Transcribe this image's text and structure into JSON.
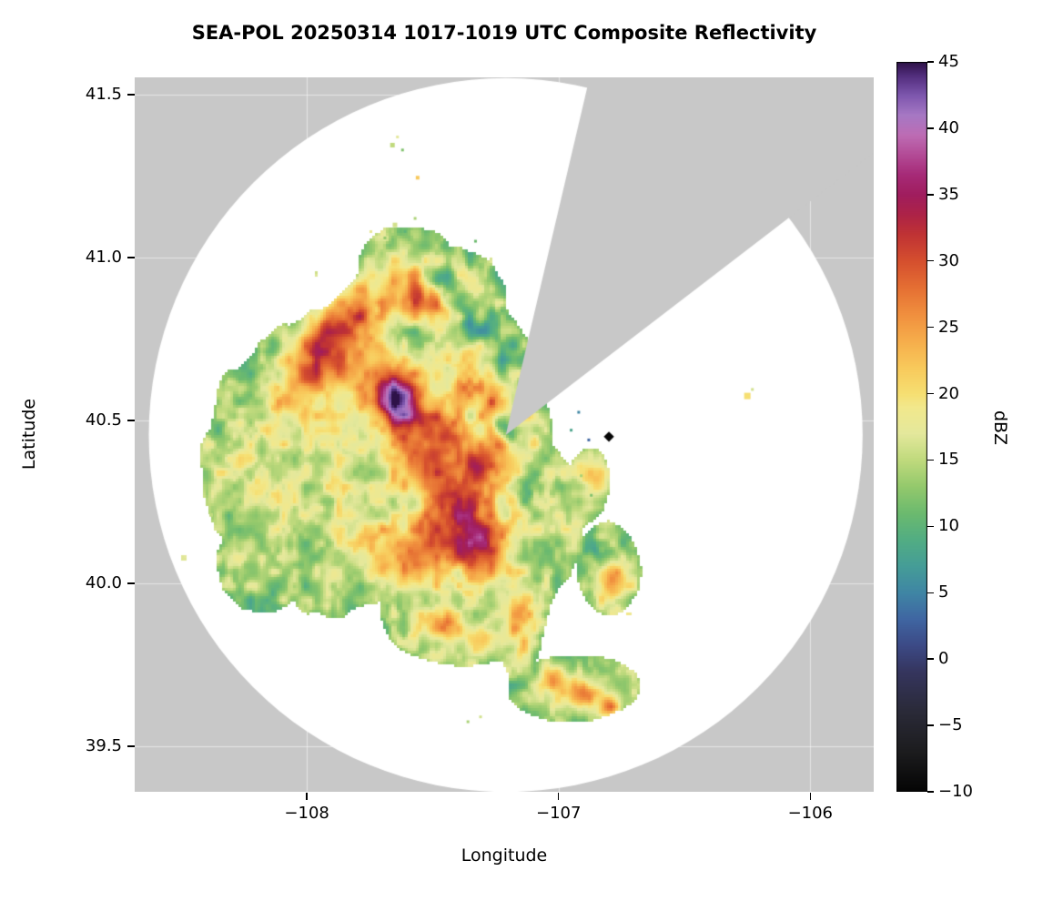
{
  "title": "SEA-POL 20250314 1017-1019 UTC Composite Reflectivity",
  "chart_data": {
    "type": "heatmap",
    "subtype": "radar-ppi-composite-reflectivity",
    "title": "SEA-POL 20250314 1017-1019 UTC Composite Reflectivity",
    "xlabel": "Longitude",
    "ylabel": "Latitude",
    "xlim": [
      -108.684,
      -105.748
    ],
    "ylim": [
      39.36,
      41.553
    ],
    "grid": true,
    "xticks": [
      {
        "value": -108,
        "label": "−108"
      },
      {
        "value": -107,
        "label": "−107"
      },
      {
        "value": -106,
        "label": "−106"
      }
    ],
    "yticks": [
      {
        "value": 41.5,
        "label": "41.5"
      },
      {
        "value": 41.0,
        "label": "41.0"
      },
      {
        "value": 40.5,
        "label": "40.5"
      },
      {
        "value": 40.0,
        "label": "40.0"
      },
      {
        "value": 39.5,
        "label": "39.5"
      }
    ],
    "colorbar": {
      "label": "dBZ",
      "min": -10,
      "max": 45,
      "ticks": [
        {
          "value": 45,
          "label": "45"
        },
        {
          "value": 40,
          "label": "40"
        },
        {
          "value": 35,
          "label": "35"
        },
        {
          "value": 30,
          "label": "30"
        },
        {
          "value": 25,
          "label": "25"
        },
        {
          "value": 20,
          "label": "20"
        },
        {
          "value": 15,
          "label": "15"
        },
        {
          "value": 10,
          "label": "10"
        },
        {
          "value": 5,
          "label": "5"
        },
        {
          "value": 0,
          "label": "0"
        },
        {
          "value": -5,
          "label": "−5"
        },
        {
          "value": -10,
          "label": "−10"
        }
      ]
    },
    "colors": {
      "out_of_range": "#c8c8c8",
      "no_echo": "#ffffff",
      "grid": "rgba(255,255,255,0.5)"
    },
    "colormap_stops": [
      [
        -10,
        "#050505"
      ],
      [
        -7,
        "#1c1c1e"
      ],
      [
        -4,
        "#2a2a38"
      ],
      [
        -1,
        "#35355e"
      ],
      [
        1,
        "#3c4a86"
      ],
      [
        3,
        "#3f66a2"
      ],
      [
        5,
        "#3f86a4"
      ],
      [
        7,
        "#459d97"
      ],
      [
        9,
        "#52ad83"
      ],
      [
        11,
        "#6cba6e"
      ],
      [
        13,
        "#94c96c"
      ],
      [
        15,
        "#c0da7d"
      ],
      [
        17,
        "#e4e89c"
      ],
      [
        19,
        "#f2e88c"
      ],
      [
        20,
        "#f6df72"
      ],
      [
        22,
        "#f8c95b"
      ],
      [
        24,
        "#f6ad4b"
      ],
      [
        26,
        "#f08f3e"
      ],
      [
        28,
        "#e56f33"
      ],
      [
        30,
        "#d54f2e"
      ],
      [
        32,
        "#c03334"
      ],
      [
        33.5,
        "#ad2347"
      ],
      [
        35,
        "#a01d5e"
      ],
      [
        36.5,
        "#a62a77"
      ],
      [
        38,
        "#b34b96"
      ],
      [
        39.5,
        "#bd6cb4"
      ],
      [
        41,
        "#a678c4"
      ],
      [
        42.5,
        "#7e57ae"
      ],
      [
        44,
        "#512d7c"
      ],
      [
        45,
        "#2e1248"
      ]
    ],
    "radar": {
      "center_lon": -107.21,
      "center_lat": 40.455,
      "range_deg_lon": 1.418,
      "blocked_sector_deg": [
        -76.8,
        -37.5
      ]
    },
    "field": {
      "noise": {
        "base_dbz": 16,
        "amp_low": 4,
        "amp_high_pos": 7,
        "amp_high_neg": 4.5,
        "edge_drop": 7.5,
        "freq_low": 5,
        "freq_high": 23,
        "threshold": 0.3
      },
      "envelope": [
        [
          -107.85,
          40.38,
          0.4,
          0.34,
          1.0
        ],
        [
          -107.55,
          40.62,
          0.33,
          0.28,
          1.0
        ],
        [
          -107.38,
          40.18,
          0.33,
          0.26,
          1.0
        ],
        [
          -107.22,
          40.48,
          0.14,
          0.18,
          0.95
        ],
        [
          -107.38,
          39.92,
          0.26,
          0.13,
          0.9
        ],
        [
          -106.95,
          39.68,
          0.2,
          0.08,
          0.9
        ],
        [
          -106.8,
          40.05,
          0.1,
          0.11,
          0.85
        ],
        [
          -107.6,
          40.98,
          0.17,
          0.1,
          0.75
        ],
        [
          -108.18,
          40.05,
          0.16,
          0.14,
          0.7
        ],
        [
          -107.15,
          39.92,
          0.08,
          0.18,
          0.85
        ],
        [
          -106.88,
          40.3,
          0.07,
          0.1,
          0.7
        ],
        [
          -107.45,
          40.88,
          0.2,
          0.12,
          0.9
        ]
      ],
      "cells": [
        [
          -107.63,
          40.56,
          0.055,
          0.05,
          21
        ],
        [
          -107.68,
          40.63,
          0.09,
          0.07,
          9
        ],
        [
          -107.56,
          40.48,
          0.08,
          0.07,
          9
        ],
        [
          -107.9,
          40.77,
          0.09,
          0.065,
          10
        ],
        [
          -107.79,
          40.86,
          0.07,
          0.055,
          11
        ],
        [
          -107.99,
          40.67,
          0.08,
          0.06,
          8
        ],
        [
          -108.07,
          40.55,
          0.07,
          0.07,
          6
        ],
        [
          -107.85,
          40.7,
          0.11,
          0.09,
          6
        ],
        [
          -107.56,
          40.89,
          0.055,
          0.045,
          10
        ],
        [
          -107.46,
          40.82,
          0.06,
          0.045,
          9
        ],
        [
          -107.66,
          40.93,
          0.045,
          0.04,
          8
        ],
        [
          -107.5,
          40.4,
          0.1,
          0.09,
          7
        ],
        [
          -107.45,
          40.27,
          0.09,
          0.08,
          9
        ],
        [
          -107.36,
          40.17,
          0.08,
          0.07,
          11
        ],
        [
          -107.52,
          40.12,
          0.1,
          0.06,
          10
        ],
        [
          -107.64,
          40.06,
          0.08,
          0.05,
          8
        ],
        [
          -107.28,
          40.08,
          0.07,
          0.06,
          9
        ],
        [
          -107.3,
          40.38,
          0.045,
          0.045,
          11
        ],
        [
          -107.26,
          40.52,
          0.04,
          0.035,
          10
        ],
        [
          -107.38,
          40.6,
          0.05,
          0.04,
          8
        ],
        [
          -107.34,
          40.7,
          0.05,
          0.04,
          9
        ],
        [
          -107.44,
          40.47,
          0.04,
          0.04,
          9
        ],
        [
          -107.46,
          39.87,
          0.055,
          0.035,
          9
        ],
        [
          -107.3,
          39.82,
          0.045,
          0.03,
          8
        ],
        [
          -107.16,
          39.88,
          0.04,
          0.08,
          6
        ],
        [
          -107.02,
          39.71,
          0.045,
          0.03,
          10
        ],
        [
          -106.9,
          39.66,
          0.045,
          0.028,
          12
        ],
        [
          -106.8,
          39.62,
          0.03,
          0.025,
          15
        ],
        [
          -106.79,
          40.02,
          0.04,
          0.045,
          11
        ],
        [
          -107.2,
          40.42,
          0.035,
          0.05,
          9
        ],
        [
          -107.26,
          40.6,
          0.04,
          0.04,
          8
        ],
        [
          -107.4,
          40.82,
          0.05,
          0.04,
          -9
        ],
        [
          -107.32,
          40.76,
          0.04,
          0.035,
          -8
        ],
        [
          -107.25,
          40.67,
          0.035,
          0.035,
          -8
        ],
        [
          -107.225,
          40.49,
          0.028,
          0.03,
          -15
        ],
        [
          -107.19,
          40.44,
          0.025,
          0.03,
          -13
        ],
        [
          -106.85,
          40.1,
          0.05,
          0.04,
          -8
        ],
        [
          -107.55,
          40.75,
          0.05,
          0.04,
          -6
        ],
        [
          -107.1,
          40.3,
          0.04,
          0.04,
          -7
        ],
        [
          -107.58,
          40.25,
          0.05,
          0.04,
          -5
        ],
        [
          -107.47,
          40.92,
          0.04,
          0.03,
          -9
        ]
      ],
      "specks": [
        [
          -107.66,
          41.345,
          15,
          5
        ],
        [
          -107.62,
          41.33,
          12,
          3
        ],
        [
          -107.64,
          41.37,
          17,
          3
        ],
        [
          -107.56,
          41.245,
          22,
          4
        ],
        [
          -107.65,
          41.1,
          16,
          5
        ],
        [
          -107.61,
          41.08,
          10,
          3
        ],
        [
          -107.69,
          41.06,
          13,
          3
        ],
        [
          -107.57,
          41.12,
          14,
          3
        ],
        [
          -107.33,
          41.05,
          11,
          3
        ],
        [
          -106.92,
          40.525,
          5,
          3
        ],
        [
          -106.95,
          40.47,
          8,
          3
        ],
        [
          -106.88,
          40.44,
          3,
          3
        ],
        [
          -106.87,
          40.27,
          12,
          3
        ],
        [
          -106.91,
          40.33,
          14,
          3
        ],
        [
          -106.25,
          40.575,
          20,
          7
        ],
        [
          -106.23,
          40.595,
          16,
          3
        ],
        [
          -108.38,
          40.21,
          15,
          4
        ],
        [
          -108.33,
          40.63,
          13,
          4
        ],
        [
          -107.36,
          39.575,
          14,
          3
        ],
        [
          -107.31,
          39.59,
          16,
          3
        ]
      ],
      "marker": {
        "lon": -106.8,
        "lat": 40.45,
        "shape": "diamond",
        "dbz": -10,
        "size": 8
      }
    }
  }
}
